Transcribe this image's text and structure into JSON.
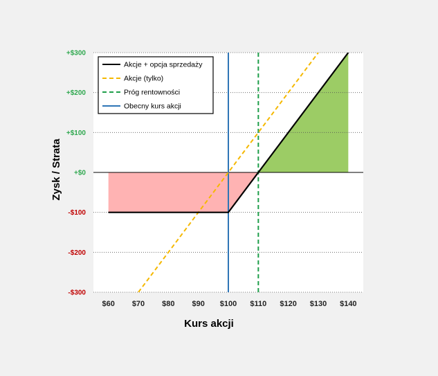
{
  "chart_data": {
    "type": "line",
    "xlabel": "Kurs akcji",
    "ylabel": "Zysk / Strata",
    "xlim": [
      55,
      145
    ],
    "ylim": [
      -300,
      300
    ],
    "x_ticks": [
      {
        "value": 60,
        "label": "$60"
      },
      {
        "value": 70,
        "label": "$70"
      },
      {
        "value": 80,
        "label": "$80"
      },
      {
        "value": 90,
        "label": "$90"
      },
      {
        "value": 100,
        "label": "$100"
      },
      {
        "value": 110,
        "label": "$110"
      },
      {
        "value": 120,
        "label": "$120"
      },
      {
        "value": 130,
        "label": "$130"
      },
      {
        "value": 140,
        "label": "$140"
      }
    ],
    "y_ticks": [
      {
        "value": 300,
        "label": "+$300",
        "color": "#2fa84f"
      },
      {
        "value": 200,
        "label": "+$200",
        "color": "#2fa84f"
      },
      {
        "value": 100,
        "label": "+$100",
        "color": "#2fa84f"
      },
      {
        "value": 0,
        "label": "+$0",
        "color": "#2fa84f"
      },
      {
        "value": -100,
        "label": "-$100",
        "color": "#c00000"
      },
      {
        "value": -200,
        "label": "-$200",
        "color": "#c00000"
      },
      {
        "value": -300,
        "label": "-$300",
        "color": "#c00000"
      }
    ],
    "grid": {
      "horizontal": true,
      "style": "dotted"
    },
    "legend_position": "top-left",
    "series": [
      {
        "name": "Akcje + opcja sprzedaży",
        "color": "#000000",
        "style": "solid",
        "x": [
          60,
          100,
          110,
          140
        ],
        "y": [
          -100,
          -100,
          0,
          300
        ]
      },
      {
        "name": "Akcje (tylko)",
        "color": "#f5b800",
        "style": "dashed",
        "x": [
          70,
          130
        ],
        "y": [
          -300,
          300
        ]
      }
    ],
    "vertical_lines": [
      {
        "name": "Próg rentowności",
        "x": 110,
        "color": "#1e9e4a",
        "style": "dashed"
      },
      {
        "name": "Obecny kurs akcji",
        "x": 100,
        "color": "#2e75b6",
        "style": "solid"
      }
    ],
    "shaded_regions": [
      {
        "kind": "loss",
        "color": "#ffb3b3",
        "x": [
          60,
          100,
          110
        ],
        "y": [
          -100,
          -100,
          0
        ]
      },
      {
        "kind": "profit",
        "color": "#9ccc65",
        "x": [
          110,
          140
        ],
        "y": [
          0,
          300
        ]
      }
    ]
  }
}
